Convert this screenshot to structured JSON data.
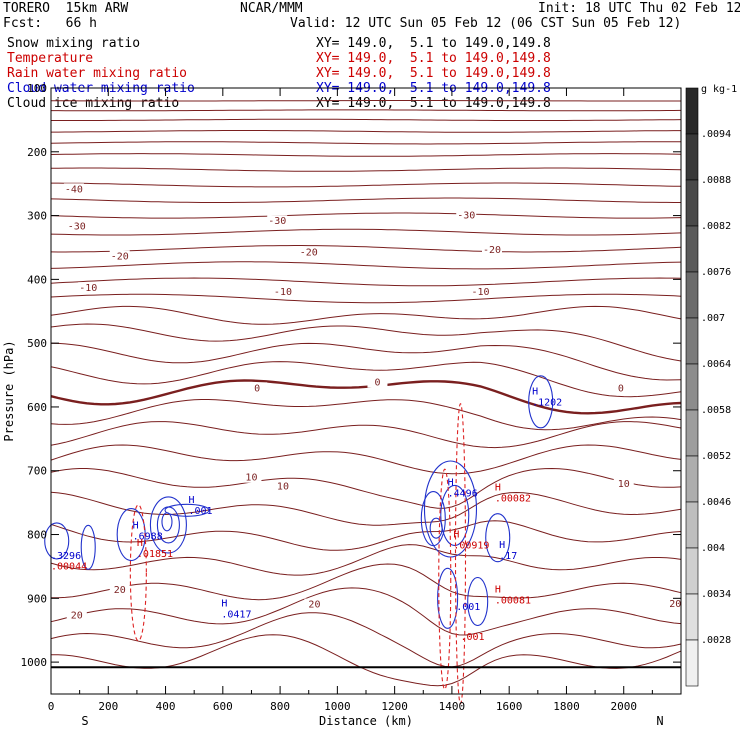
{
  "header": {
    "model": "TORERO  15km ARW",
    "center": "NCAR/MMM",
    "init": "Init: 18 UTC Thu 02 Feb 12",
    "fcst": "Fcst:   66 h",
    "valid": "Valid: 12 UTC Sun 05 Feb 12 (06 CST Sun 05 Feb 12)"
  },
  "fields": [
    {
      "name": "Snow mixing ratio",
      "xy": "XY= 149.0,  5.1 to 149.0,149.8",
      "color": "#000000"
    },
    {
      "name": "Temperature",
      "xy": "XY= 149.0,  5.1 to 149.0,149.8",
      "color": "#cc0000"
    },
    {
      "name": "Rain water mixing ratio",
      "xy": "XY= 149.0,  5.1 to 149.0,149.8",
      "color": "#cc0000"
    },
    {
      "name": "Cloud water mixing ratio",
      "xy": "XY= 149.0,  5.1 to 149.0,149.8",
      "color": "#0000cc"
    },
    {
      "name": "Cloud ice mixing ratio",
      "xy": "XY= 149.0,  5.1 to 149.0,149.8",
      "color": "#000000"
    }
  ],
  "chart_data": {
    "type": "cross-section contour",
    "xlabel": "Distance (km)",
    "ylabel": "Pressure (hPa)",
    "xlim": [
      0,
      2200
    ],
    "ylim": [
      1050,
      100
    ],
    "x_ticks": [
      0,
      200,
      400,
      600,
      800,
      1000,
      1200,
      1400,
      1600,
      1800,
      2000
    ],
    "y_ticks": [
      100,
      200,
      300,
      400,
      500,
      600,
      700,
      800,
      900,
      1000
    ],
    "x_end_labels": {
      "left": "S",
      "right": "N"
    },
    "colorbar": {
      "unit": "g kg-1",
      "labels": [
        ".0094",
        ".0088",
        ".0082",
        ".0076",
        ".007",
        ".0064",
        ".0058",
        ".0052",
        ".0046",
        ".004",
        ".0034",
        ".0028"
      ]
    },
    "temperature_contours": [
      {
        "value": -40,
        "label": "-40"
      },
      {
        "value": -30,
        "label": "-30"
      },
      {
        "value": -20,
        "label": "-20"
      },
      {
        "value": -10,
        "label": "-10"
      },
      {
        "value": 0,
        "label": "0"
      },
      {
        "value": 10,
        "label": "10"
      },
      {
        "value": 20,
        "label": "20"
      }
    ],
    "extrema_labels": [
      {
        "type": "H",
        "value": ".1202",
        "x": 1680,
        "p": 598,
        "color": "#0000cc"
      },
      {
        "type": "H",
        "value": ".4496",
        "x": 1385,
        "p": 740,
        "color": "#0000cc"
      },
      {
        "type": "H",
        "value": ".00082",
        "x": 1550,
        "p": 748,
        "color": "#cc0000"
      },
      {
        "type": "H",
        "value": ".001",
        "x": 480,
        "p": 768,
        "color": "#0000cc"
      },
      {
        "type": "H",
        "value": ".6988",
        "x": 285,
        "p": 808,
        "color": "#0000cc"
      },
      {
        "type": "H",
        "value": ".01851",
        "x": 300,
        "p": 835,
        "color": "#cc0000"
      },
      {
        "type": "H",
        "value": ".00919",
        "x": 1405,
        "p": 822,
        "color": "#cc0000"
      },
      {
        "type": "H",
        "value": ".17",
        "x": 1565,
        "p": 838,
        "color": "#0000cc"
      },
      {
        "type": "",
        "value": ".3296",
        "x": 0,
        "p": 838,
        "color": "#0000cc"
      },
      {
        "type": "",
        "value": ".00044",
        "x": 0,
        "p": 855,
        "color": "#cc0000"
      },
      {
        "type": "H",
        "value": ".00081",
        "x": 1550,
        "p": 908,
        "color": "#cc0000"
      },
      {
        "type": "H",
        "value": ".0417",
        "x": 595,
        "p": 930,
        "color": "#0000cc"
      },
      {
        "type": "",
        "value": ".001",
        "x": 1415,
        "p": 918,
        "color": "#0000cc"
      },
      {
        "type": "",
        "value": ".001",
        "x": 1430,
        "p": 965,
        "color": "#cc0000"
      }
    ]
  }
}
